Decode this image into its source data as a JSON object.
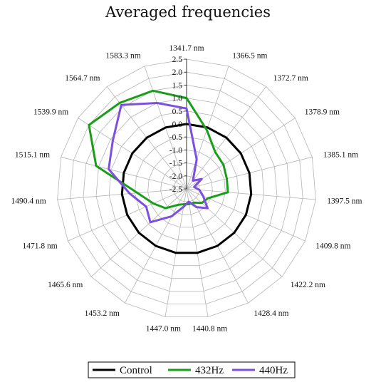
{
  "chart_data": {
    "type": "radar",
    "title": "Averaged frequencies",
    "axes": [
      "1341.7 nm",
      "1366.5 nm",
      "1372.7 nm",
      "1378.9 nm",
      "1385.1 nm",
      "1397.5 nm",
      "1409.8 nm",
      "1422.2 nm",
      "1428.4 nm",
      "1440.8 nm",
      "1447.0 nm",
      "1453.2 nm",
      "1465.6 nm",
      "1471.8 nm",
      "1490.4 nm",
      "1515.1 nm",
      "1539.9 nm",
      "1564.7 nm",
      "1583.3 nm"
    ],
    "r_ticks": [
      "-2.5",
      "-2.0",
      "-1.5",
      "-1.0",
      "-0.5",
      "0.0",
      "0.5",
      "1.0",
      "1.5",
      "2.0",
      "2.5"
    ],
    "rlim": [
      -2.5,
      2.5
    ],
    "grid": true,
    "legend_position": "bottom",
    "series": [
      {
        "name": "Control",
        "color": "#000000",
        "values": [
          0,
          0,
          0,
          0,
          0,
          0,
          0,
          0,
          0,
          0,
          0,
          0,
          0,
          0,
          0,
          0,
          0,
          0,
          0
        ]
      },
      {
        "name": "432Hz",
        "color": "#1a9e1a",
        "values": [
          1.0,
          -0.1,
          -0.7,
          -0.8,
          -0.9,
          -0.9,
          -1.6,
          -1.7,
          -1.9,
          -1.9,
          -1.9,
          -1.8,
          -1.4,
          -1.1,
          -0.6,
          1.1,
          2.0,
          1.7,
          1.5
        ]
      },
      {
        "name": "440Hz",
        "color": "#7d4fe0",
        "values": [
          0.6,
          -1.3,
          -2.1,
          -1.8,
          -2.2,
          -2.0,
          -1.8,
          -1.4,
          -1.7,
          -2.0,
          -1.8,
          -1.3,
          -0.6,
          -0.8,
          -0.3,
          0.6,
          0.9,
          1.6,
          1.0
        ]
      }
    ]
  }
}
